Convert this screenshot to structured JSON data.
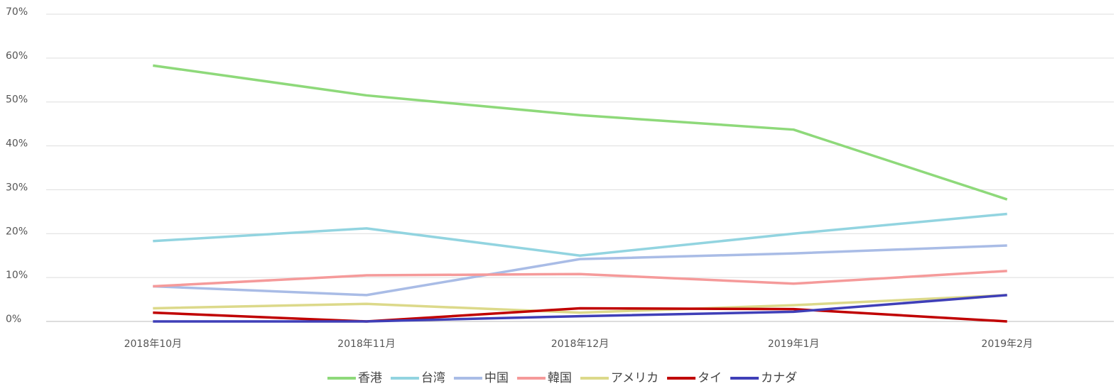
{
  "chart_data": {
    "type": "line",
    "categories": [
      "2018年10月",
      "2018年11月",
      "2018年12月",
      "2019年1月",
      "2019年2月"
    ],
    "series": [
      {
        "name": "香港",
        "color": "#8ed97a",
        "values": [
          58.3,
          51.5,
          47,
          43.7,
          27.8
        ]
      },
      {
        "name": "台湾",
        "color": "#92d4e0",
        "values": [
          18.3,
          21.2,
          15,
          20,
          24.5
        ]
      },
      {
        "name": "中国",
        "color": "#a9bce6",
        "values": [
          8,
          6,
          14.2,
          15.5,
          17.3
        ]
      },
      {
        "name": "韓国",
        "color": "#f59a9a",
        "values": [
          8,
          10.5,
          10.8,
          8.6,
          11.5
        ]
      },
      {
        "name": "アメリカ",
        "color": "#dcd98a",
        "values": [
          3,
          4,
          2,
          3.7,
          6
        ]
      },
      {
        "name": "タイ",
        "color": "#c00000",
        "values": [
          2,
          0,
          3,
          2.8,
          0
        ]
      },
      {
        "name": "カナダ",
        "color": "#3f3fb8",
        "values": [
          0,
          0,
          1.2,
          2.2,
          6
        ]
      }
    ],
    "ylim": [
      0,
      70
    ],
    "yticks": [
      {
        "value": 0,
        "label": "0%"
      },
      {
        "value": 10,
        "label": "10%"
      },
      {
        "value": 20,
        "label": "20%"
      },
      {
        "value": 30,
        "label": "30%"
      },
      {
        "value": 40,
        "label": "40%"
      },
      {
        "value": 50,
        "label": "50%"
      },
      {
        "value": 60,
        "label": "60%"
      },
      {
        "value": 70,
        "label": "70%"
      }
    ],
    "grid": true,
    "legend": "bottom"
  }
}
